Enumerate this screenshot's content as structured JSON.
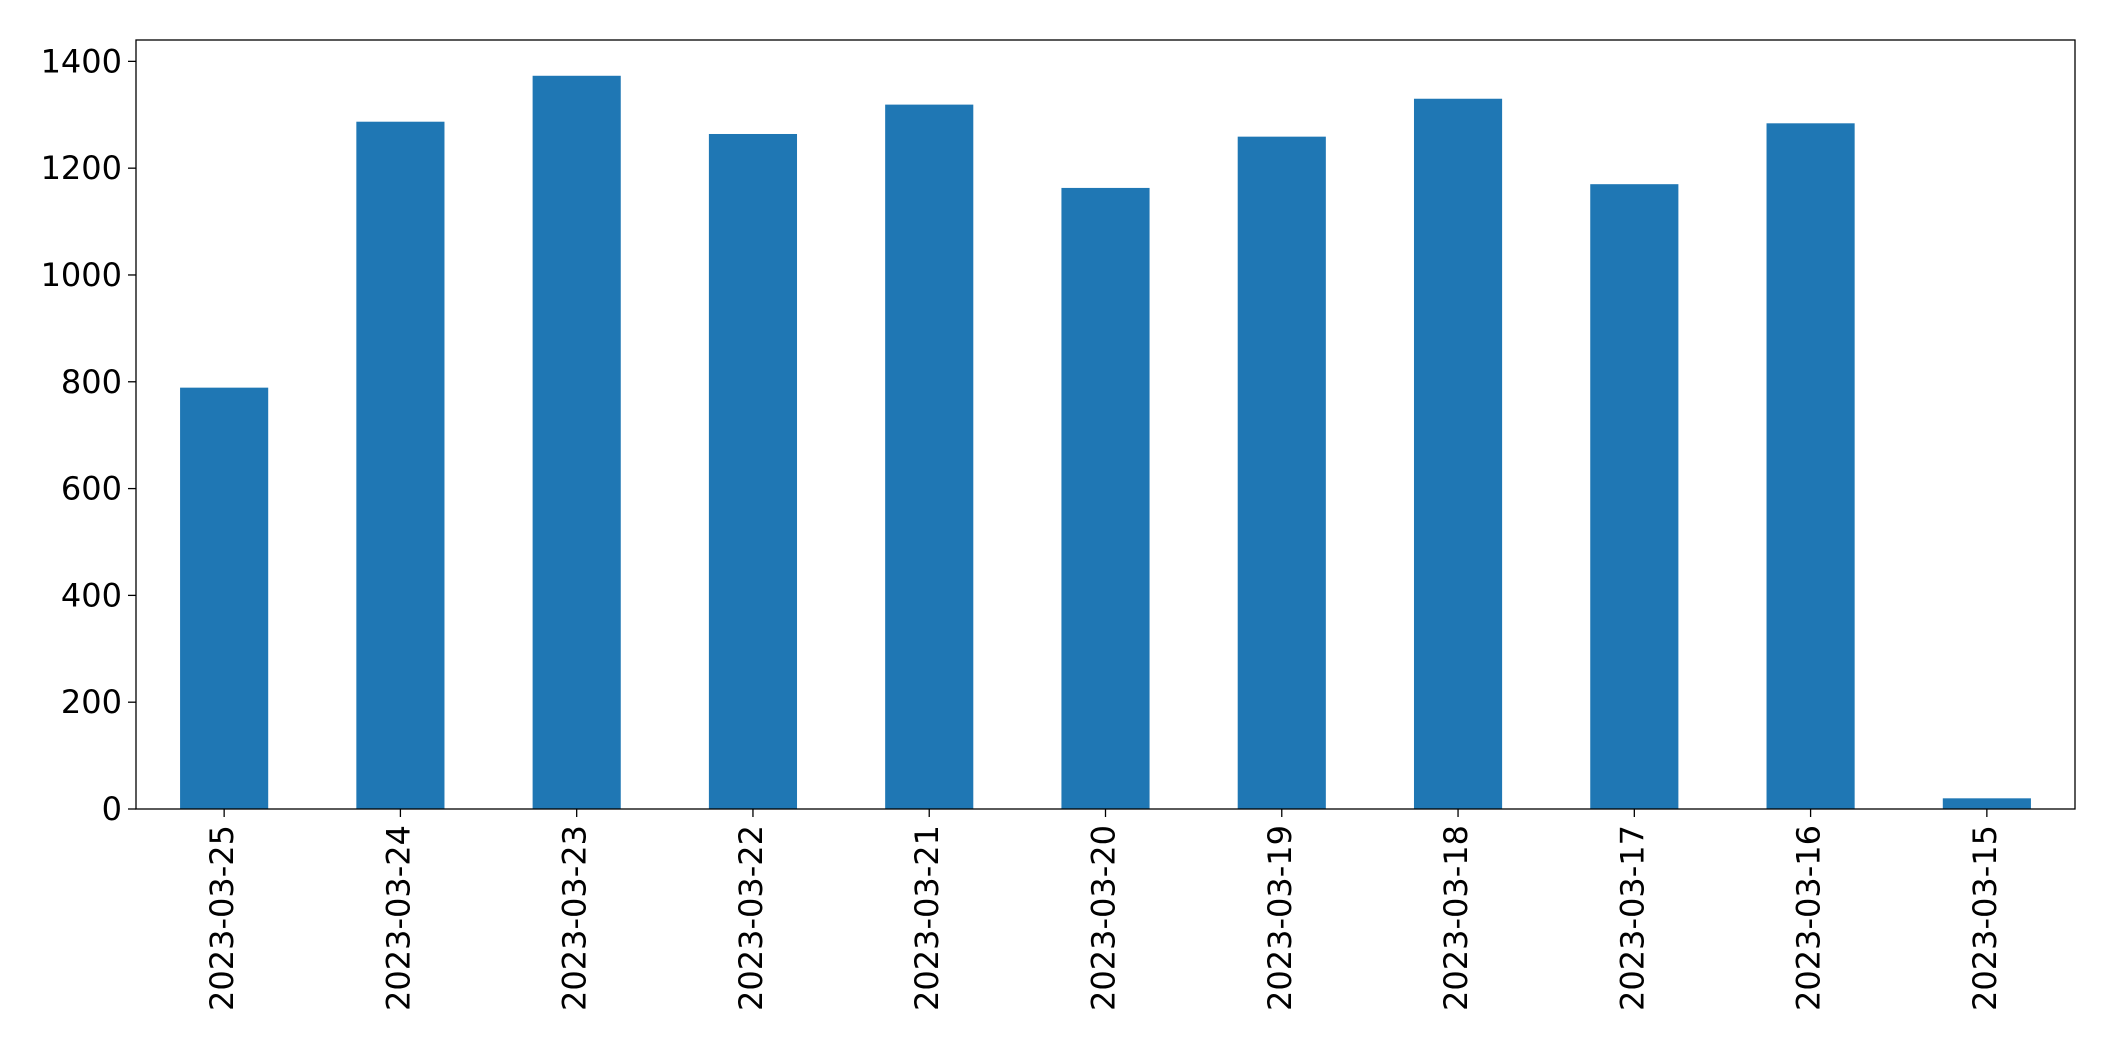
{
  "chart_data": {
    "type": "bar",
    "categories": [
      "2023-03-25",
      "2023-03-24",
      "2023-03-23",
      "2023-03-22",
      "2023-03-21",
      "2023-03-20",
      "2023-03-19",
      "2023-03-18",
      "2023-03-17",
      "2023-03-16",
      "2023-03-15"
    ],
    "values": [
      789,
      1287,
      1373,
      1264,
      1319,
      1163,
      1259,
      1330,
      1170,
      1284,
      20
    ],
    "color": "#1f77b4",
    "ylim": [
      0,
      1440
    ],
    "yticks": [
      0,
      200,
      400,
      600,
      800,
      1000,
      1200,
      1400
    ],
    "grid": false
  }
}
